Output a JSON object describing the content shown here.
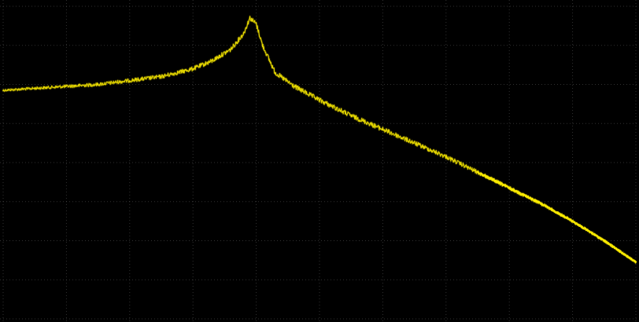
{
  "chart_data": {
    "type": "line",
    "title": "",
    "xlabel": "",
    "ylabel": "",
    "x_scale": "log",
    "xlim": [
      0,
      10
    ],
    "ylim": [
      0,
      8
    ],
    "grid": true,
    "legend": "none",
    "background_color": "#000000",
    "grid_color": "#5a5a5a",
    "series": [
      {
        "color": "#ffee00",
        "noisy": true,
        "x": [
          0,
          0.5,
          1.0,
          1.5,
          2.0,
          2.5,
          3.0,
          3.3,
          3.6,
          3.8,
          3.9,
          4.0,
          4.1,
          4.3,
          4.6,
          5.0,
          5.5,
          6.0,
          6.5,
          7.0,
          7.5,
          8.0,
          8.5,
          9.0,
          9.5,
          10.0
        ],
        "y": [
          5.85,
          5.9,
          5.95,
          6.0,
          6.1,
          6.2,
          6.4,
          6.6,
          6.9,
          7.3,
          7.7,
          7.55,
          7.0,
          6.3,
          5.95,
          5.6,
          5.2,
          4.85,
          4.5,
          4.15,
          3.75,
          3.35,
          2.95,
          2.5,
          2.0,
          1.45
        ]
      }
    ]
  }
}
